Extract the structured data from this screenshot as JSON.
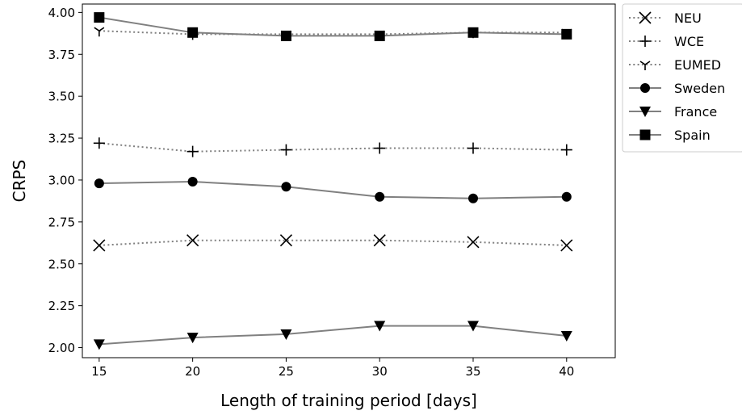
{
  "chart_data": {
    "type": "line",
    "xlabel": "Length of training period [days]",
    "ylabel": "CRPS",
    "x": [
      15,
      20,
      25,
      30,
      35,
      40
    ],
    "xticks": [
      "15",
      "20",
      "25",
      "30",
      "35",
      "40"
    ],
    "yticks": [
      "2.00",
      "2.25",
      "2.50",
      "2.75",
      "3.00",
      "3.25",
      "3.50",
      "3.75",
      "4.00"
    ],
    "xlim": [
      14.1,
      42.6
    ],
    "ylim": [
      1.94,
      4.05
    ],
    "grid": false,
    "legend_position": "outside-right",
    "line_color": "#808080",
    "series": [
      {
        "name": "NEU",
        "marker": "x",
        "linestyle": "dotted",
        "values": [
          2.61,
          2.64,
          2.64,
          2.64,
          2.63,
          2.61
        ]
      },
      {
        "name": "WCE",
        "marker": "plus",
        "linestyle": "dotted",
        "values": [
          3.22,
          3.17,
          3.18,
          3.19,
          3.19,
          3.18
        ]
      },
      {
        "name": "EUMED",
        "marker": "tri_down",
        "linestyle": "dotted",
        "values": [
          3.89,
          3.87,
          3.87,
          3.87,
          3.88,
          3.88
        ]
      },
      {
        "name": "Sweden",
        "marker": "circle",
        "linestyle": "solid",
        "values": [
          2.98,
          2.99,
          2.96,
          2.9,
          2.89,
          2.9
        ]
      },
      {
        "name": "France",
        "marker": "triangle_down",
        "linestyle": "solid",
        "values": [
          2.02,
          2.06,
          2.08,
          2.13,
          2.13,
          2.07
        ]
      },
      {
        "name": "Spain",
        "marker": "square",
        "linestyle": "solid",
        "values": [
          3.97,
          3.88,
          3.86,
          3.86,
          3.88,
          3.87
        ]
      }
    ]
  }
}
